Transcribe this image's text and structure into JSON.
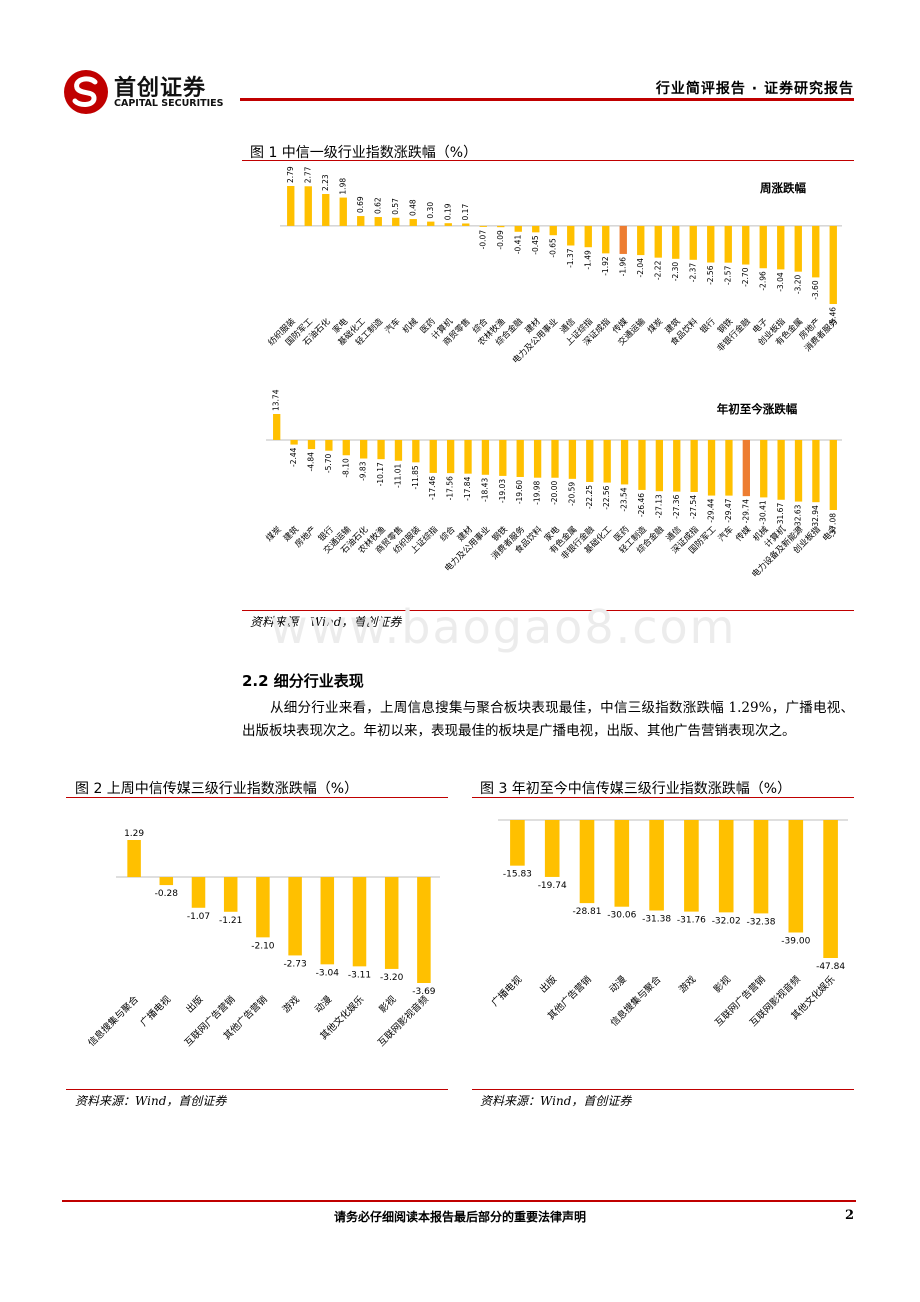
{
  "header": {
    "logo_cn": "首创证券",
    "logo_en": "CAPITAL SECURITIES",
    "report_type": "行业简评报告 · 证券研究报告"
  },
  "figure1": {
    "title": "图 1 中信一级行业指数涨跌幅（%）",
    "source": "资料来源：Wind，首创证券"
  },
  "section": {
    "title": "2.2  细分行业表现",
    "paragraph": "从细分行业来看，上周信息搜集与聚合板块表现最佳，中信三级指数涨跌幅 1.29%，广播电视、出版板块表现次之。年初以来，表现最佳的板块是广播电视，出版、其他广告营销表现次之。"
  },
  "figure2": {
    "title": "图 2 上周中信传媒三级行业指数涨跌幅（%）",
    "source": "资料来源：Wind，首创证券"
  },
  "figure3": {
    "title": "图 3 年初至今中信传媒三级行业指数涨跌幅（%）",
    "source": "资料来源：Wind，首创证券"
  },
  "watermark": "www.baogao8.com",
  "footer": {
    "disclaimer": "请务必仔细阅读本报告最后部分的重要法律声明",
    "page": "2"
  },
  "colors": {
    "bar": "#FFC000",
    "highlight": "#ED7D31",
    "accent": "#C00000"
  },
  "chart_data": [
    {
      "type": "bar",
      "title": "周涨跌幅",
      "categories": [
        "纺织服装",
        "国防军工",
        "石油石化",
        "家电",
        "基础化工",
        "轻工制造",
        "汽车",
        "机械",
        "医药",
        "计算机",
        "商贸零售",
        "综合",
        "农林牧渔",
        "综合金融",
        "建材",
        "电力及公用事业",
        "通信",
        "上证综指",
        "深证成指",
        "传媒",
        "交通运输",
        "煤炭",
        "建筑",
        "食品饮料",
        "银行",
        "钢铁",
        "非银行金融",
        "电子",
        "创业板指",
        "有色金属",
        "房地产",
        "消费者服务"
      ],
      "values": [
        2.79,
        2.77,
        2.23,
        1.98,
        0.69,
        0.62,
        0.57,
        0.48,
        0.3,
        0.19,
        0.17,
        -0.07,
        -0.09,
        -0.41,
        -0.45,
        -0.65,
        -1.37,
        -1.49,
        -1.92,
        -1.96,
        -2.04,
        -2.22,
        -2.3,
        -2.37,
        -2.56,
        -2.57,
        -2.7,
        -2.96,
        -3.04,
        -3.2,
        -3.6,
        -5.46
      ],
      "value_labels": [
        "2.79",
        "2.77",
        "2.23",
        "1.98",
        "0.69",
        "0.62",
        "0.57",
        "0.48",
        "0.30",
        "0.19",
        "0.17",
        "-0.07",
        "-0.09",
        "-0.41",
        "-0.45",
        "-0.65",
        "-1.37",
        "-1.49",
        "-1.92",
        "-1.96",
        "-2.04",
        "-2.22",
        "-2.30",
        "-2.37",
        "-2.56",
        "-2.57",
        "-2.70",
        "-2.96",
        "-3.04",
        "-3.20",
        "-3.60",
        "-5.46"
      ],
      "highlight": [
        "传媒"
      ]
    },
    {
      "type": "bar",
      "title": "年初至今涨跌幅",
      "categories": [
        "煤炭",
        "建筑",
        "房地产",
        "银行",
        "交通运输",
        "石油石化",
        "农林牧渔",
        "商贸零售",
        "纺织服装",
        "上证综指",
        "综合",
        "建材",
        "电力及公用事业",
        "钢铁",
        "消费者服务",
        "食品饮料",
        "家电",
        "有色金属",
        "非银行金融",
        "基础化工",
        "医药",
        "轻工制造",
        "综合金融",
        "通信",
        "深证成指",
        "国防军工",
        "汽车",
        "传媒",
        "机械",
        "计算机",
        "电力设备及新能源",
        "创业板指",
        "电子"
      ],
      "values": [
        13.74,
        -2.44,
        -4.84,
        -5.7,
        -8.1,
        -9.83,
        -10.17,
        -11.01,
        -11.85,
        -17.46,
        -17.56,
        -17.84,
        -18.43,
        -19.03,
        -19.6,
        -19.98,
        -20.0,
        -20.59,
        -22.25,
        -22.56,
        -23.54,
        -26.46,
        -27.13,
        -27.36,
        -27.54,
        -29.44,
        -29.47,
        -29.74,
        -30.41,
        -31.67,
        -32.63,
        -32.94,
        -37.08
      ],
      "value_labels": [
        "13.74",
        "-2.44",
        "-4.84",
        "-5.70",
        "-8.10",
        "-9.83",
        "-10.17",
        "-11.01",
        "-11.85",
        "-17.46",
        "-17.56",
        "-17.84",
        "-18.43",
        "-19.03",
        "-19.60",
        "-19.98",
        "-20.00",
        "-20.59",
        "-22.25",
        "-22.56",
        "-23.54",
        "-26.46",
        "-27.13",
        "-27.36",
        "-27.54",
        "-29.44",
        "-29.47",
        "-29.74",
        "-30.41",
        "-31.67",
        "-32.63",
        "-32.94",
        "-37.08"
      ],
      "highlight": [
        "传媒"
      ]
    },
    {
      "type": "bar",
      "title": "",
      "categories": [
        "信息搜集与聚合",
        "广播电视",
        "出版",
        "互联网广告营销",
        "其他广告营销",
        "游戏",
        "动漫",
        "其他文化娱乐",
        "影视",
        "互联网影视音频"
      ],
      "values": [
        1.29,
        -0.28,
        -1.07,
        -1.21,
        -2.1,
        -2.73,
        -3.04,
        -3.11,
        -3.2,
        -3.69
      ],
      "value_labels": [
        "1.29",
        "-0.28",
        "-1.07",
        "-1.21",
        "-2.10",
        "-2.73",
        "-3.04",
        "-3.11",
        "-3.20",
        "-3.69"
      ]
    },
    {
      "type": "bar",
      "title": "",
      "categories": [
        "广播电视",
        "出版",
        "其他广告营销",
        "动漫",
        "信息搜集与聚合",
        "游戏",
        "影视",
        "互联网广告营销",
        "互联网影视音频",
        "其他文化娱乐"
      ],
      "values": [
        -15.83,
        -19.74,
        -28.81,
        -30.06,
        -31.38,
        -31.76,
        -32.02,
        -32.38,
        -39.0,
        -47.84
      ],
      "value_labels": [
        "-15.83",
        "-19.74",
        "-28.81",
        "-30.06",
        "-31.38",
        "-31.76",
        "-32.02",
        "-32.38",
        "-39.00",
        "-47.84"
      ]
    }
  ]
}
